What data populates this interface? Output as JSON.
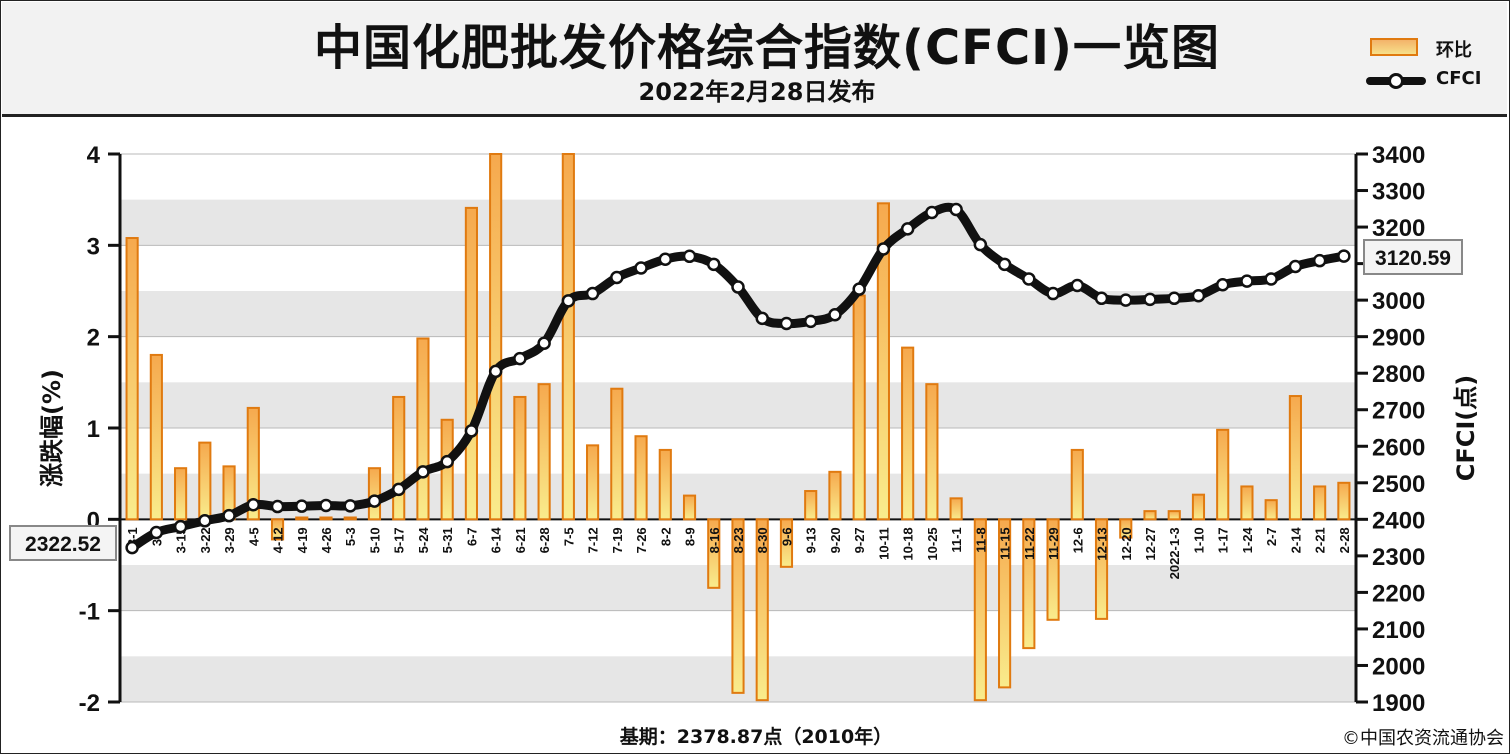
{
  "title": "中国化肥批发价格综合指数(CFCI)一览图",
  "subtitle": "2022年2月28日发布",
  "legend": {
    "bar_label": "环比",
    "line_label": "CFCI"
  },
  "footer": {
    "base": "基期：2378.87点（2010年）",
    "copyright": "©中国农资流通协会"
  },
  "colors": {
    "bar_fill_top": "#f6a94e",
    "bar_fill_bottom": "#f9ec8c",
    "bar_stroke": "#e07a10",
    "line": "#111111",
    "band": "#e6e6e6"
  },
  "chart_data": {
    "type": "bar+line",
    "categories": [
      "3-1",
      "3-8",
      "3-15",
      "3-22",
      "3-29",
      "4-5",
      "4-12",
      "4-19",
      "4-26",
      "5-3",
      "5-10",
      "5-17",
      "5-24",
      "5-31",
      "6-7",
      "6-14",
      "6-21",
      "6-28",
      "7-5",
      "7-12",
      "7-19",
      "7-26",
      "8-2",
      "8-9",
      "8-16",
      "8-23",
      "8-30",
      "9-6",
      "9-13",
      "9-20",
      "9-27",
      "10-11",
      "10-18",
      "10-25",
      "11-1",
      "11-8",
      "11-15",
      "11-22",
      "11-29",
      "12-6",
      "12-13",
      "12-20",
      "12-27",
      "2022-1-3",
      "1-10",
      "1-17",
      "1-24",
      "2-7",
      "2-14",
      "2-21",
      "2-28"
    ],
    "left_axis": {
      "label": "涨跌幅(%)",
      "ylim": [
        -2,
        4
      ],
      "ticks": [
        "4",
        "3",
        "2",
        "1",
        "0",
        "-1",
        "-2"
      ]
    },
    "right_axis": {
      "label": "CFCI(点)",
      "ylim": [
        1900,
        3400
      ],
      "ticks": [
        "3400",
        "3300",
        "3200",
        "3100",
        "3000",
        "2900",
        "2800",
        "2700",
        "2600",
        "2500",
        "2400",
        "2300",
        "2200",
        "2100",
        "2000",
        "1900"
      ]
    },
    "series": [
      {
        "name": "环比",
        "type": "bar",
        "axis": "left",
        "values": [
          3.08,
          1.8,
          0.56,
          0.84,
          0.58,
          1.22,
          -0.22,
          0.02,
          0.02,
          0.02,
          0.56,
          1.34,
          1.98,
          1.09,
          3.41,
          4.0,
          1.34,
          1.48,
          4.0,
          0.81,
          1.43,
          0.91,
          0.76,
          0.26,
          -0.75,
          -1.9,
          -1.98,
          -0.52,
          0.31,
          0.52,
          2.45,
          3.46,
          1.88,
          1.48,
          0.23,
          -1.98,
          -1.84,
          -1.41,
          -1.1,
          0.76,
          -1.09,
          -0.2,
          0.09,
          0.09,
          0.27,
          0.98,
          0.36,
          0.21,
          1.35,
          0.36,
          0.4
        ]
      },
      {
        "name": "CFCI",
        "type": "line",
        "axis": "right",
        "values": [
          2322.52,
          2364,
          2380,
          2396,
          2410,
          2440,
          2435,
          2436,
          2438,
          2437,
          2450,
          2482,
          2530,
          2558,
          2642,
          2805,
          2840,
          2882,
          2998,
          3018,
          3062,
          3088,
          3112,
          3120,
          3098,
          3036,
          2950,
          2936,
          2942,
          2960,
          3030,
          3140,
          3195,
          3240,
          3248,
          3152,
          3098,
          3058,
          3018,
          3040,
          3005,
          3000,
          3002,
          3005,
          3012,
          3042,
          3052,
          3058,
          3092,
          3108,
          3120.59
        ]
      }
    ],
    "annotations": {
      "start": "2322.52",
      "end": "3120.59"
    },
    "grid": true
  }
}
